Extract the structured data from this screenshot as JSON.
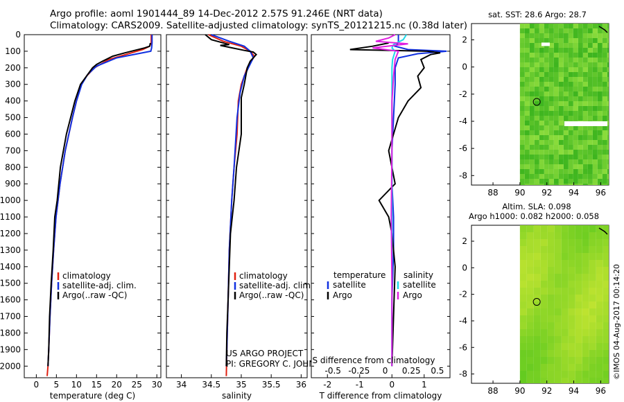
{
  "title": {
    "line1": "Argo profile: aoml 1901444_89 14-Dec-2012 2.57S 91.246E (NRT data)",
    "line2": "Climatology: CARS2009. Satellite-adjusted climatology: synTS_20121215.nc (0.38d later)"
  },
  "colors": {
    "climatology": "#e02010",
    "satellite": "#1030e0",
    "argo": "#000000",
    "satellite_diff_s": "#20d8e8",
    "argo_diff_s": "#e020e0",
    "map_base": "#5fcf2f"
  },
  "chart_data": [
    {
      "type": "line",
      "name": "temperature-profile",
      "xlabel": "temperature (deg C)",
      "xlim": [
        -3,
        31
      ],
      "ylim": [
        2070,
        0
      ],
      "xticks": [
        0,
        5,
        10,
        15,
        20,
        25,
        30
      ],
      "yticks": [
        0,
        100,
        200,
        300,
        400,
        500,
        600,
        700,
        800,
        900,
        1000,
        1100,
        1200,
        1300,
        1400,
        1500,
        1600,
        1700,
        1800,
        1900,
        2000
      ],
      "legend": [
        "climatology",
        "satellite-adj. clim.",
        "Argo(..raw -QC)"
      ],
      "series": [
        {
          "name": "climatology",
          "color_key": "climatology",
          "x": [
            28.6,
            28.6,
            28.2,
            26.5,
            18,
            14.5,
            12.5,
            11.2,
            10,
            9,
            7.2,
            5.9,
            4.9,
            4.3,
            3.8,
            3.4,
            3.1,
            2.9,
            2.7
          ],
          "y": [
            0,
            50,
            70,
            90,
            150,
            200,
            250,
            300,
            400,
            500,
            700,
            900,
            1100,
            1300,
            1500,
            1700,
            1900,
            2000,
            2060
          ]
        },
        {
          "name": "satellite-adj. clim.",
          "color_key": "satellite",
          "x": [
            28.8,
            28.8,
            28.7,
            28.5,
            20,
            15,
            12.8,
            11.3,
            10,
            9,
            7.2,
            5.9,
            4.9,
            4.3,
            3.8,
            3.4,
            3.1,
            2.9
          ],
          "y": [
            0,
            50,
            80,
            100,
            140,
            190,
            240,
            300,
            400,
            500,
            700,
            900,
            1100,
            1300,
            1500,
            1700,
            1900,
            2000
          ]
        },
        {
          "name": "Argo(..raw -QC)",
          "color_key": "argo",
          "x": [
            28.4,
            28.2,
            27,
            24.5,
            22,
            19,
            16.5,
            15,
            14,
            12.5,
            11,
            9.6,
            7.5,
            6,
            5.2,
            4.6,
            4.2,
            3.7,
            3.3,
            3.1,
            2.9
          ],
          "y": [
            50,
            70,
            80,
            95,
            110,
            130,
            160,
            180,
            200,
            250,
            300,
            400,
            600,
            800,
            1000,
            1100,
            1300,
            1500,
            1700,
            1900,
            2000
          ]
        }
      ]
    },
    {
      "type": "line",
      "name": "salinity-profile",
      "xlabel": "salinity",
      "xlim": [
        33.75,
        36.1
      ],
      "ylim": [
        2070,
        0
      ],
      "xticks": [
        34,
        34.5,
        35,
        35.5,
        36
      ],
      "xtick_labels": [
        "34",
        "34.5",
        "35",
        "35.5",
        "36"
      ],
      "legend": [
        "climatology",
        "satellite-adj. clim.",
        "Argo(..raw -QC)"
      ],
      "annotation": [
        "US ARGO PROJECT",
        "PI: GREGORY C. JOHNSON"
      ],
      "series": [
        {
          "name": "climatology",
          "color_key": "climatology",
          "x": [
            34.45,
            34.7,
            35,
            35.15,
            35.22,
            35.1,
            35.0,
            34.95,
            34.93,
            34.88,
            34.84,
            34.8,
            34.78,
            34.76,
            34.75
          ],
          "y": [
            0,
            40,
            70,
            100,
            130,
            200,
            300,
            400,
            600,
            800,
            1000,
            1300,
            1600,
            1900,
            2060
          ]
        },
        {
          "name": "satellite-adj. clim.",
          "color_key": "satellite",
          "x": [
            34.5,
            34.8,
            35.05,
            35.15,
            35.2,
            35.05,
            34.98,
            34.93,
            34.88,
            34.84,
            34.8,
            34.78,
            34.76,
            34.75
          ],
          "y": [
            0,
            40,
            70,
            100,
            140,
            250,
            350,
            500,
            800,
            1000,
            1300,
            1600,
            1900,
            2000
          ]
        },
        {
          "name": "Argo(..raw -QC)",
          "color_key": "argo",
          "x": [
            34.4,
            34.5,
            34.8,
            34.65,
            34.85,
            35.05,
            35.2,
            35.25,
            35.15,
            35.1,
            35.05,
            35.0,
            35.0,
            34.92,
            34.88,
            34.85,
            34.82,
            34.8,
            34.78,
            34.76,
            34.75
          ],
          "y": [
            0,
            30,
            60,
            65,
            80,
            95,
            105,
            120,
            160,
            200,
            300,
            380,
            600,
            800,
            1000,
            1100,
            1200,
            1400,
            1600,
            1800,
            2000
          ]
        }
      ]
    },
    {
      "type": "line",
      "name": "difference-profile",
      "xlabel": "T difference from climatology",
      "xlabel2": "S difference from climatology",
      "xlim": [
        -2.5,
        1.8
      ],
      "ylim": [
        2070,
        0
      ],
      "xticks": [
        -2,
        -1,
        0,
        1
      ],
      "xtick_labels": [
        "-2",
        "-1",
        "0",
        "1"
      ],
      "xticks2": [
        -0.5,
        -0.25,
        0,
        0.25,
        0.5
      ],
      "xtick2_labels": [
        "-0.5",
        "-0.25",
        "0",
        "0.25",
        "0.5"
      ],
      "legend_temperature": [
        "temperature",
        "satellite",
        "Argo"
      ],
      "legend_salinity": [
        "salinity",
        "satellite",
        "Argo"
      ],
      "series": [
        {
          "name": "T satellite",
          "color_key": "satellite",
          "x": [
            0.2,
            0.2,
            0.1,
            0.5,
            1.7,
            0.8,
            0.2,
            0.1,
            0.1,
            0.05,
            0,
            0,
            0.05,
            0.05,
            0,
            0
          ],
          "y": [
            0,
            50,
            70,
            90,
            100,
            115,
            140,
            200,
            300,
            500,
            700,
            900,
            1100,
            1300,
            1600,
            2000
          ]
        },
        {
          "name": "T Argo",
          "color_key": "argo",
          "x": [
            -0.1,
            -0.6,
            -1.3,
            1.1,
            1.5,
            1.2,
            0.9,
            1.0,
            0.8,
            0.9,
            0.5,
            0.2,
            -0.1,
            0.1,
            -0.4,
            -0.1,
            0,
            0.1,
            0.05,
            0
          ],
          "y": [
            50,
            70,
            90,
            100,
            110,
            120,
            150,
            200,
            250,
            320,
            400,
            500,
            700,
            900,
            1000,
            1100,
            1200,
            1400,
            1700,
            2000
          ]
        },
        {
          "name": "S satellite",
          "color_key": "satellite_diff_s",
          "x": [
            0.45,
            0.35,
            0.05,
            0,
            0.1,
            0.02,
            0,
            0,
            0,
            0,
            0,
            0
          ],
          "y": [
            0,
            30,
            60,
            80,
            100,
            150,
            200,
            300,
            500,
            800,
            1400,
            2000
          ]
        },
        {
          "name": "S Argo",
          "color_key": "argo_diff_s",
          "x": [
            0.1,
            -0.1,
            -0.5,
            0.5,
            -0.6,
            0.2,
            0.1,
            0.05,
            0,
            0,
            -0.02,
            0,
            0
          ],
          "y": [
            0,
            20,
            40,
            55,
            80,
            100,
            150,
            250,
            400,
            700,
            1100,
            1500,
            2000
          ]
        }
      ]
    }
  ],
  "maps": [
    {
      "name": "sst-map",
      "title": "sat. SST: 28.6  Argo: 28.7",
      "xticks": [
        "88",
        "90",
        "92",
        "94",
        "96"
      ],
      "yticks": [
        "2",
        "0",
        "-2",
        "-4",
        "-6",
        "-8"
      ],
      "marker": [
        91.25,
        -2.57
      ]
    },
    {
      "name": "sla-map",
      "title1": "Altim. SLA: 0.098",
      "title2": "Argo h1000: 0.082 h2000: 0.058",
      "xticks": [
        "88",
        "90",
        "92",
        "94",
        "96"
      ],
      "yticks": [
        "2",
        "0",
        "-2",
        "-4",
        "-6",
        "-8"
      ],
      "marker": [
        91.25,
        -2.57
      ]
    }
  ],
  "footer_stamp": "©IMOS 04-Aug-2017 00:14:20"
}
